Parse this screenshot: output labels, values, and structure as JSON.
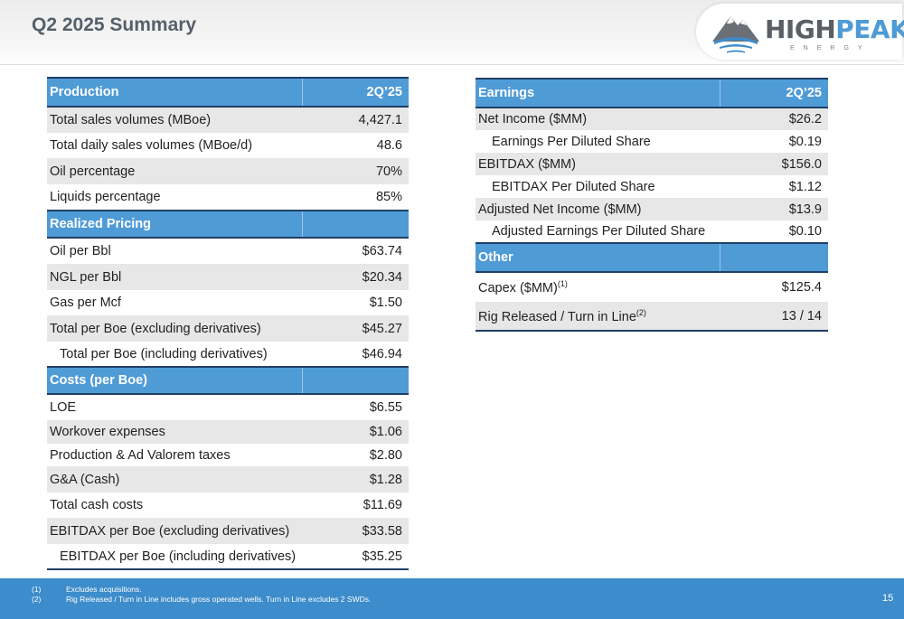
{
  "title": "Q2 2025 Summary",
  "logo": {
    "word_high": "HIGH",
    "word_peak": "PEAK",
    "sub": "ENERGY"
  },
  "left_table": {
    "sections": [
      {
        "header": "Production",
        "col": "2Q’25",
        "rows": [
          {
            "label": "Total sales volumes (MBoe)",
            "value": "4,427.1"
          },
          {
            "label": "Total daily sales volumes (MBoe/d)",
            "value": "48.6"
          },
          {
            "label": "Oil percentage",
            "value": "70%"
          },
          {
            "label": "Liquids percentage",
            "value": "85%"
          }
        ]
      },
      {
        "header": "Realized Pricing",
        "col": "",
        "rows": [
          {
            "label": "Oil per Bbl",
            "value": "$63.74"
          },
          {
            "label": "NGL per Bbl",
            "value": "$20.34"
          },
          {
            "label": "Gas per Mcf",
            "value": "$1.50"
          },
          {
            "label": "Total per Boe (excluding derivatives)",
            "value": "$45.27"
          },
          {
            "label": "Total per Boe (including derivatives)",
            "value": "$46.94"
          }
        ]
      },
      {
        "header": "Costs (per Boe)",
        "col": "",
        "rows": [
          {
            "label": "LOE",
            "value": "$6.55"
          },
          {
            "label": "Workover expenses",
            "value": "$1.06"
          },
          {
            "label": "Production & Ad Valorem taxes",
            "value": "$2.80"
          },
          {
            "label": "G&A (Cash)",
            "value": "$1.28"
          },
          {
            "label": "Total cash costs",
            "value": "$11.69"
          },
          {
            "label": "EBITDAX per Boe (excluding derivatives)",
            "value": "$33.58"
          },
          {
            "label": "EBITDAX per Boe (including derivatives)",
            "value": "$35.25"
          }
        ]
      }
    ]
  },
  "right_table": {
    "sections": [
      {
        "header": "Earnings",
        "col": "2Q’25",
        "rows": [
          {
            "label": "Net Income ($MM)",
            "value": "$26.2"
          },
          {
            "label": "Earnings Per Diluted Share",
            "value": "$0.19"
          },
          {
            "label": "EBITDAX ($MM)",
            "value": "$156.0"
          },
          {
            "label": "EBITDAX Per Diluted Share",
            "value": "$1.12"
          },
          {
            "label": "Adjusted Net Income ($MM)",
            "value": "$13.9"
          },
          {
            "label": "Adjusted Earnings Per Diluted Share",
            "value": "$0.10"
          }
        ]
      },
      {
        "header": "Other",
        "col": "",
        "rows": [
          {
            "label": "Capex ($MM)",
            "sup": "(1)",
            "value": "$125.4"
          },
          {
            "label": "Rig Released / Turn in Line",
            "sup": "(2)",
            "value": "13 / 14"
          }
        ]
      }
    ]
  },
  "footnotes": [
    {
      "num": "(1)",
      "text": "Excludes acquisitions."
    },
    {
      "num": "(2)",
      "text": "Rig Released / Turn in Line includes gross operated wells.  Turn in Line excludes 2 SWDs."
    }
  ],
  "page_number": "15",
  "colors": {
    "header_blue": "#4f9bd6",
    "rule_navy": "#1f3f66",
    "footer_blue": "#3d8ccb",
    "stripe": "#e7e7e7"
  }
}
